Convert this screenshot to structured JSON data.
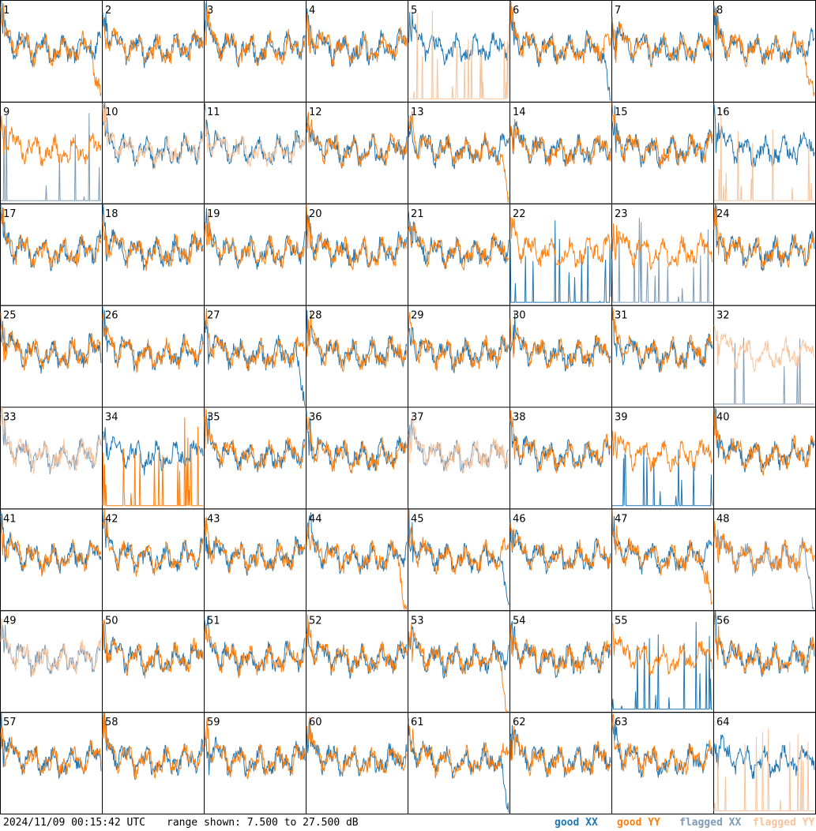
{
  "footer": {
    "timestamp": "2024/11/09 00:15:42 UTC",
    "range_text": "range shown: 7.500 to 27.500 dB"
  },
  "legend": {
    "good_xx": "good XX",
    "good_yy": "good YY",
    "flagged_xx": "flagged XX",
    "flagged_yy": "flagged YY"
  },
  "colors": {
    "good_xx": "#1f77b4",
    "good_yy": "#ff7f0e",
    "flagged_xx": "#7f9bb5",
    "flagged_yy": "#f8c39a",
    "frame": "#000000"
  },
  "chart_data": {
    "type": "line",
    "layout": "small-multiples",
    "rows": 8,
    "cols": 8,
    "ylim": [
      7.5,
      27.5
    ],
    "y_unit": "dB",
    "panels": [
      {
        "label": "1",
        "xx": {
          "status": "good",
          "shape": "normal"
        },
        "yy": {
          "status": "good",
          "shape": "dip-right"
        }
      },
      {
        "label": "2",
        "xx": {
          "status": "good",
          "shape": "normal"
        },
        "yy": {
          "status": "good",
          "shape": "normal"
        }
      },
      {
        "label": "3",
        "xx": {
          "status": "good",
          "shape": "normal"
        },
        "yy": {
          "status": "good",
          "shape": "normal"
        }
      },
      {
        "label": "4",
        "xx": {
          "status": "good",
          "shape": "normal"
        },
        "yy": {
          "status": "good",
          "shape": "normal"
        }
      },
      {
        "label": "5",
        "xx": {
          "status": "good",
          "shape": "normal"
        },
        "yy": {
          "status": "flagged",
          "shape": "spike"
        }
      },
      {
        "label": "6",
        "xx": {
          "status": "good",
          "shape": "dip-right"
        },
        "yy": {
          "status": "good",
          "shape": "normal"
        }
      },
      {
        "label": "7",
        "xx": {
          "status": "good",
          "shape": "normal"
        },
        "yy": {
          "status": "good",
          "shape": "normal"
        }
      },
      {
        "label": "8",
        "xx": {
          "status": "good",
          "shape": "normal"
        },
        "yy": {
          "status": "good",
          "shape": "dip-right"
        }
      },
      {
        "label": "9",
        "xx": {
          "status": "flagged",
          "shape": "spike"
        },
        "yy": {
          "status": "good",
          "shape": "normal"
        }
      },
      {
        "label": "10",
        "xx": {
          "status": "good",
          "shape": "normal"
        },
        "yy": {
          "status": "flagged",
          "shape": "normal"
        }
      },
      {
        "label": "11",
        "xx": {
          "status": "good",
          "shape": "normal"
        },
        "yy": {
          "status": "flagged",
          "shape": "normal"
        }
      },
      {
        "label": "12",
        "xx": {
          "status": "good",
          "shape": "normal"
        },
        "yy": {
          "status": "good",
          "shape": "normal"
        }
      },
      {
        "label": "13",
        "xx": {
          "status": "good",
          "shape": "normal"
        },
        "yy": {
          "status": "good",
          "shape": "dip-right"
        }
      },
      {
        "label": "14",
        "xx": {
          "status": "good",
          "shape": "normal"
        },
        "yy": {
          "status": "good",
          "shape": "normal"
        }
      },
      {
        "label": "15",
        "xx": {
          "status": "good",
          "shape": "normal"
        },
        "yy": {
          "status": "good",
          "shape": "normal"
        }
      },
      {
        "label": "16",
        "xx": {
          "status": "good",
          "shape": "normal"
        },
        "yy": {
          "status": "flagged",
          "shape": "spike"
        }
      },
      {
        "label": "17",
        "xx": {
          "status": "good",
          "shape": "normal"
        },
        "yy": {
          "status": "good",
          "shape": "normal"
        }
      },
      {
        "label": "18",
        "xx": {
          "status": "good",
          "shape": "normal"
        },
        "yy": {
          "status": "good",
          "shape": "normal"
        }
      },
      {
        "label": "19",
        "xx": {
          "status": "good",
          "shape": "normal"
        },
        "yy": {
          "status": "good",
          "shape": "normal"
        }
      },
      {
        "label": "20",
        "xx": {
          "status": "good",
          "shape": "normal"
        },
        "yy": {
          "status": "good",
          "shape": "normal"
        }
      },
      {
        "label": "21",
        "xx": {
          "status": "good",
          "shape": "normal"
        },
        "yy": {
          "status": "good",
          "shape": "normal"
        }
      },
      {
        "label": "22",
        "xx": {
          "status": "good",
          "shape": "spike"
        },
        "yy": {
          "status": "good",
          "shape": "normal"
        }
      },
      {
        "label": "23",
        "xx": {
          "status": "flagged",
          "shape": "spike"
        },
        "yy": {
          "status": "good",
          "shape": "normal"
        }
      },
      {
        "label": "24",
        "xx": {
          "status": "good",
          "shape": "normal"
        },
        "yy": {
          "status": "good",
          "shape": "normal"
        }
      },
      {
        "label": "25",
        "xx": {
          "status": "good",
          "shape": "normal"
        },
        "yy": {
          "status": "good",
          "shape": "normal"
        }
      },
      {
        "label": "26",
        "xx": {
          "status": "good",
          "shape": "normal"
        },
        "yy": {
          "status": "good",
          "shape": "normal"
        }
      },
      {
        "label": "27",
        "xx": {
          "status": "good",
          "shape": "dip-right"
        },
        "yy": {
          "status": "good",
          "shape": "normal"
        }
      },
      {
        "label": "28",
        "xx": {
          "status": "good",
          "shape": "normal"
        },
        "yy": {
          "status": "good",
          "shape": "normal"
        }
      },
      {
        "label": "29",
        "xx": {
          "status": "good",
          "shape": "normal"
        },
        "yy": {
          "status": "good",
          "shape": "normal"
        }
      },
      {
        "label": "30",
        "xx": {
          "status": "good",
          "shape": "normal"
        },
        "yy": {
          "status": "good",
          "shape": "normal"
        }
      },
      {
        "label": "31",
        "xx": {
          "status": "good",
          "shape": "normal"
        },
        "yy": {
          "status": "good",
          "shape": "normal"
        }
      },
      {
        "label": "32",
        "xx": {
          "status": "flagged",
          "shape": "spike"
        },
        "yy": {
          "status": "flagged",
          "shape": "normal"
        }
      },
      {
        "label": "33",
        "xx": {
          "status": "flagged",
          "shape": "normal"
        },
        "yy": {
          "status": "flagged",
          "shape": "normal"
        }
      },
      {
        "label": "34",
        "xx": {
          "status": "good",
          "shape": "normal"
        },
        "yy": {
          "status": "good",
          "shape": "spike"
        }
      },
      {
        "label": "35",
        "xx": {
          "status": "good",
          "shape": "normal"
        },
        "yy": {
          "status": "good",
          "shape": "normal"
        }
      },
      {
        "label": "36",
        "xx": {
          "status": "good",
          "shape": "normal"
        },
        "yy": {
          "status": "good",
          "shape": "normal"
        }
      },
      {
        "label": "37",
        "xx": {
          "status": "flagged",
          "shape": "normal"
        },
        "yy": {
          "status": "flagged",
          "shape": "normal"
        }
      },
      {
        "label": "38",
        "xx": {
          "status": "good",
          "shape": "normal"
        },
        "yy": {
          "status": "good",
          "shape": "normal"
        }
      },
      {
        "label": "39",
        "xx": {
          "status": "good",
          "shape": "spike"
        },
        "yy": {
          "status": "good",
          "shape": "normal"
        }
      },
      {
        "label": "40",
        "xx": {
          "status": "good",
          "shape": "normal"
        },
        "yy": {
          "status": "good",
          "shape": "normal"
        }
      },
      {
        "label": "41",
        "xx": {
          "status": "good",
          "shape": "normal"
        },
        "yy": {
          "status": "good",
          "shape": "normal"
        }
      },
      {
        "label": "42",
        "xx": {
          "status": "good",
          "shape": "normal"
        },
        "yy": {
          "status": "good",
          "shape": "normal"
        }
      },
      {
        "label": "43",
        "xx": {
          "status": "good",
          "shape": "normal"
        },
        "yy": {
          "status": "good",
          "shape": "normal"
        }
      },
      {
        "label": "44",
        "xx": {
          "status": "good",
          "shape": "normal"
        },
        "yy": {
          "status": "good",
          "shape": "dip-right"
        }
      },
      {
        "label": "45",
        "xx": {
          "status": "good",
          "shape": "dip-right"
        },
        "yy": {
          "status": "good",
          "shape": "normal"
        }
      },
      {
        "label": "46",
        "xx": {
          "status": "good",
          "shape": "normal"
        },
        "yy": {
          "status": "good",
          "shape": "normal"
        }
      },
      {
        "label": "47",
        "xx": {
          "status": "good",
          "shape": "normal"
        },
        "yy": {
          "status": "good",
          "shape": "dip-right"
        }
      },
      {
        "label": "48",
        "xx": {
          "status": "flagged",
          "shape": "dip-right"
        },
        "yy": {
          "status": "good",
          "shape": "normal"
        }
      },
      {
        "label": "49",
        "xx": {
          "status": "flagged",
          "shape": "normal"
        },
        "yy": {
          "status": "flagged",
          "shape": "normal"
        }
      },
      {
        "label": "50",
        "xx": {
          "status": "good",
          "shape": "normal"
        },
        "yy": {
          "status": "good",
          "shape": "normal"
        }
      },
      {
        "label": "51",
        "xx": {
          "status": "good",
          "shape": "normal"
        },
        "yy": {
          "status": "good",
          "shape": "normal"
        }
      },
      {
        "label": "52",
        "xx": {
          "status": "good",
          "shape": "normal"
        },
        "yy": {
          "status": "good",
          "shape": "normal"
        }
      },
      {
        "label": "53",
        "xx": {
          "status": "good",
          "shape": "normal"
        },
        "yy": {
          "status": "good",
          "shape": "dip-right"
        }
      },
      {
        "label": "54",
        "xx": {
          "status": "good",
          "shape": "normal"
        },
        "yy": {
          "status": "good",
          "shape": "normal"
        }
      },
      {
        "label": "55",
        "xx": {
          "status": "good",
          "shape": "spike"
        },
        "yy": {
          "status": "good",
          "shape": "normal"
        }
      },
      {
        "label": "56",
        "xx": {
          "status": "good",
          "shape": "normal"
        },
        "yy": {
          "status": "good",
          "shape": "normal"
        }
      },
      {
        "label": "57",
        "xx": {
          "status": "good",
          "shape": "normal"
        },
        "yy": {
          "status": "good",
          "shape": "normal"
        }
      },
      {
        "label": "58",
        "xx": {
          "status": "good",
          "shape": "normal"
        },
        "yy": {
          "status": "good",
          "shape": "normal"
        }
      },
      {
        "label": "59",
        "xx": {
          "status": "good",
          "shape": "normal"
        },
        "yy": {
          "status": "good",
          "shape": "normal"
        }
      },
      {
        "label": "60",
        "xx": {
          "status": "good",
          "shape": "normal"
        },
        "yy": {
          "status": "good",
          "shape": "normal"
        }
      },
      {
        "label": "61",
        "xx": {
          "status": "good",
          "shape": "dip-right"
        },
        "yy": {
          "status": "good",
          "shape": "normal"
        }
      },
      {
        "label": "62",
        "xx": {
          "status": "good",
          "shape": "normal"
        },
        "yy": {
          "status": "good",
          "shape": "normal"
        }
      },
      {
        "label": "63",
        "xx": {
          "status": "good",
          "shape": "normal"
        },
        "yy": {
          "status": "good",
          "shape": "normal"
        }
      },
      {
        "label": "64",
        "xx": {
          "status": "good",
          "shape": "normal"
        },
        "yy": {
          "status": "flagged",
          "shape": "spike"
        }
      }
    ]
  }
}
